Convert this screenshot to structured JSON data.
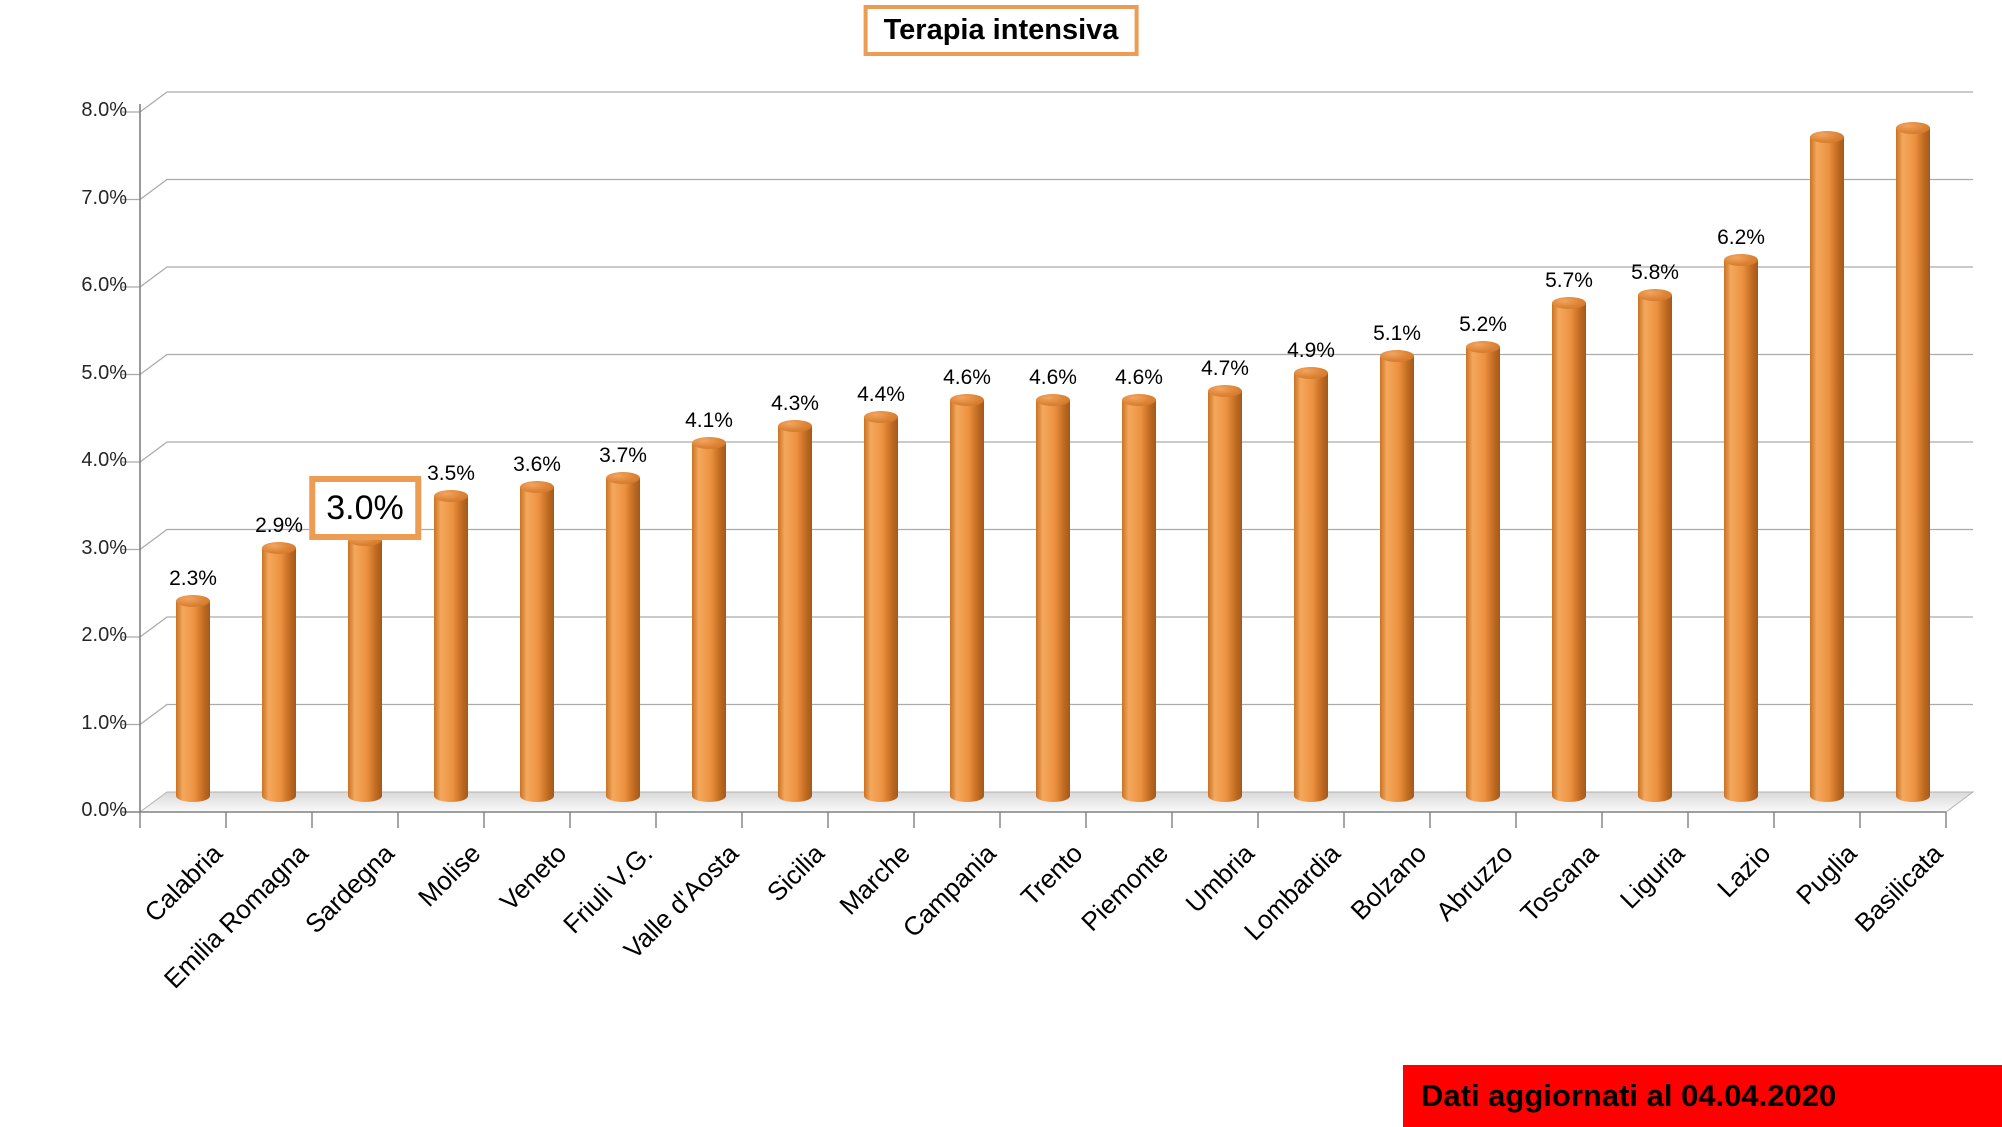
{
  "title": "Terapia intensiva",
  "banner": {
    "text": "Dati aggiornati al 04.04.2020",
    "bg_color": "#FF0000",
    "text_color": "#000000"
  },
  "colors": {
    "accent_orange": "#ED9C53",
    "bar_orange": "#EC9140",
    "gridline_gray": "#ABABAB",
    "banner_red": "#FF0000"
  },
  "chart_data": {
    "type": "bar",
    "style": "3d-cylinder",
    "title": "Terapia intensiva",
    "xlabel": "",
    "ylabel": "",
    "ylim": [
      0,
      8
    ],
    "ytick_step": 1,
    "ytick_labels": [
      "0.0%",
      "1.0%",
      "2.0%",
      "3.0%",
      "4.0%",
      "5.0%",
      "6.0%",
      "7.0%",
      "8.0%"
    ],
    "grid": true,
    "legend": false,
    "categories": [
      "Calabria",
      "Emilia Romagna",
      "Sardegna",
      "Molise",
      "Veneto",
      "Friuli V.G.",
      "Valle d'Aosta",
      "Sicilia",
      "Marche",
      "Campania",
      "Trento",
      "Piemonte",
      "Umbria",
      "Lombardia",
      "Bolzano",
      "Abruzzo",
      "Toscana",
      "Liguria",
      "Lazio",
      "Puglia",
      "Basilicata"
    ],
    "values": [
      2.3,
      2.9,
      3.0,
      3.5,
      3.6,
      3.7,
      4.1,
      4.3,
      4.4,
      4.6,
      4.6,
      4.6,
      4.7,
      4.9,
      5.1,
      5.2,
      5.7,
      5.8,
      6.2,
      7.6,
      7.7
    ],
    "bar_labels": [
      "2.3%",
      "2.9%",
      "3.0%",
      "3.5%",
      "3.6%",
      "3.7%",
      "4.1%",
      "4.3%",
      "4.4%",
      "4.6%",
      "4.6%",
      "4.6%",
      "4.7%",
      "4.9%",
      "5.1%",
      "5.2%",
      "5.7%",
      "5.8%",
      "6.2%",
      "",
      ""
    ],
    "unlabeled_bars": [
      "Puglia",
      "Basilicata"
    ],
    "highlighted_category": "Sardegna",
    "highlighted_label": "3.0%"
  }
}
